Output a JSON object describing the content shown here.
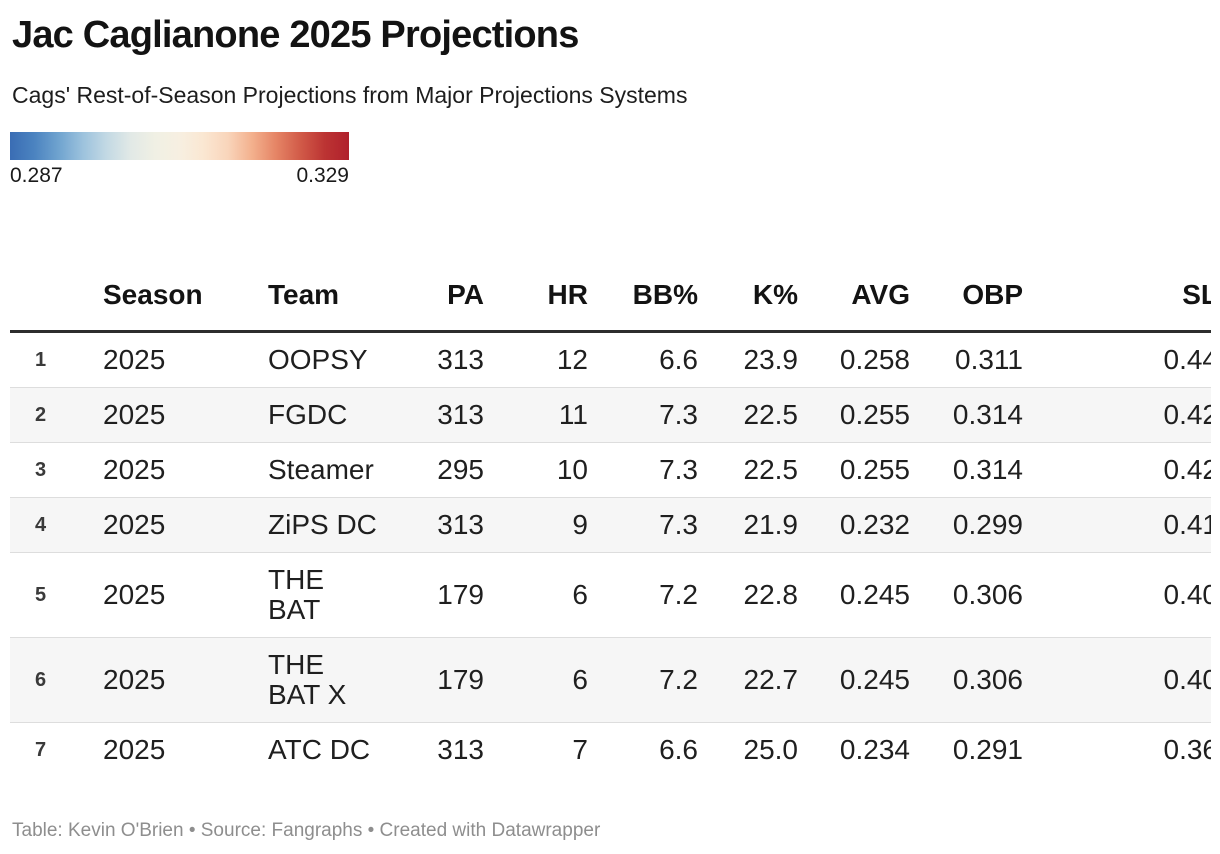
{
  "header": {
    "title": "Jac Caglianone 2025 Projections",
    "subtitle": "Cags' Rest-of-Season Projections from Major Projections Systems"
  },
  "legend": {
    "min_label": "0.287",
    "max_label": "0.329",
    "gradient_colors": [
      "#3a6db4",
      "#4b83c0",
      "#6fa3cf",
      "#9cc2dd",
      "#c3d9e4",
      "#e2e9e6",
      "#f0f0e4",
      "#f7efe1",
      "#fae7d2",
      "#f9d5bb",
      "#f3b08d",
      "#e58465",
      "#d15a48",
      "#bc3433",
      "#b0202c"
    ]
  },
  "chart_data": {
    "type": "table",
    "title": "Jac Caglianone 2025 Projections",
    "subtitle": "Cags' Rest-of-Season Projections from Major Projections Systems",
    "color_scale": {
      "min": 0.287,
      "max": 0.329,
      "palette": "blue-cream-red diverging"
    },
    "columns": [
      {
        "label": "",
        "align": "left"
      },
      {
        "label": "Season",
        "align": "left"
      },
      {
        "label": "Team",
        "align": "left"
      },
      {
        "label": "PA",
        "align": "right"
      },
      {
        "label": "HR",
        "align": "right"
      },
      {
        "label": "BB%",
        "align": "right"
      },
      {
        "label": "K%",
        "align": "right"
      },
      {
        "label": "AVG",
        "align": "right"
      },
      {
        "label": "OBP",
        "align": "right"
      },
      {
        "label": "SL",
        "align": "right"
      }
    ],
    "rows": [
      [
        "1",
        "2025",
        "OOPSY",
        "313",
        "12",
        "6.6",
        "23.9",
        "0.258",
        "0.311",
        "0.44"
      ],
      [
        "2",
        "2025",
        "FGDC",
        "313",
        "11",
        "7.3",
        "22.5",
        "0.255",
        "0.314",
        "0.42"
      ],
      [
        "3",
        "2025",
        "Steamer",
        "295",
        "10",
        "7.3",
        "22.5",
        "0.255",
        "0.314",
        "0.42"
      ],
      [
        "4",
        "2025",
        "ZiPS DC",
        "313",
        "9",
        "7.3",
        "21.9",
        "0.232",
        "0.299",
        "0.41"
      ],
      [
        "5",
        "2025",
        "THE BAT",
        "179",
        "6",
        "7.2",
        "22.8",
        "0.245",
        "0.306",
        "0.40"
      ],
      [
        "6",
        "2025",
        "THE BAT X",
        "179",
        "6",
        "7.2",
        "22.7",
        "0.245",
        "0.306",
        "0.40"
      ],
      [
        "7",
        "2025",
        "ATC DC",
        "313",
        "7",
        "6.6",
        "25.0",
        "0.234",
        "0.291",
        "0.36"
      ]
    ]
  },
  "footer": {
    "text": "Table: Kevin O'Brien • Source: Fangraphs • Created with Datawrapper"
  }
}
